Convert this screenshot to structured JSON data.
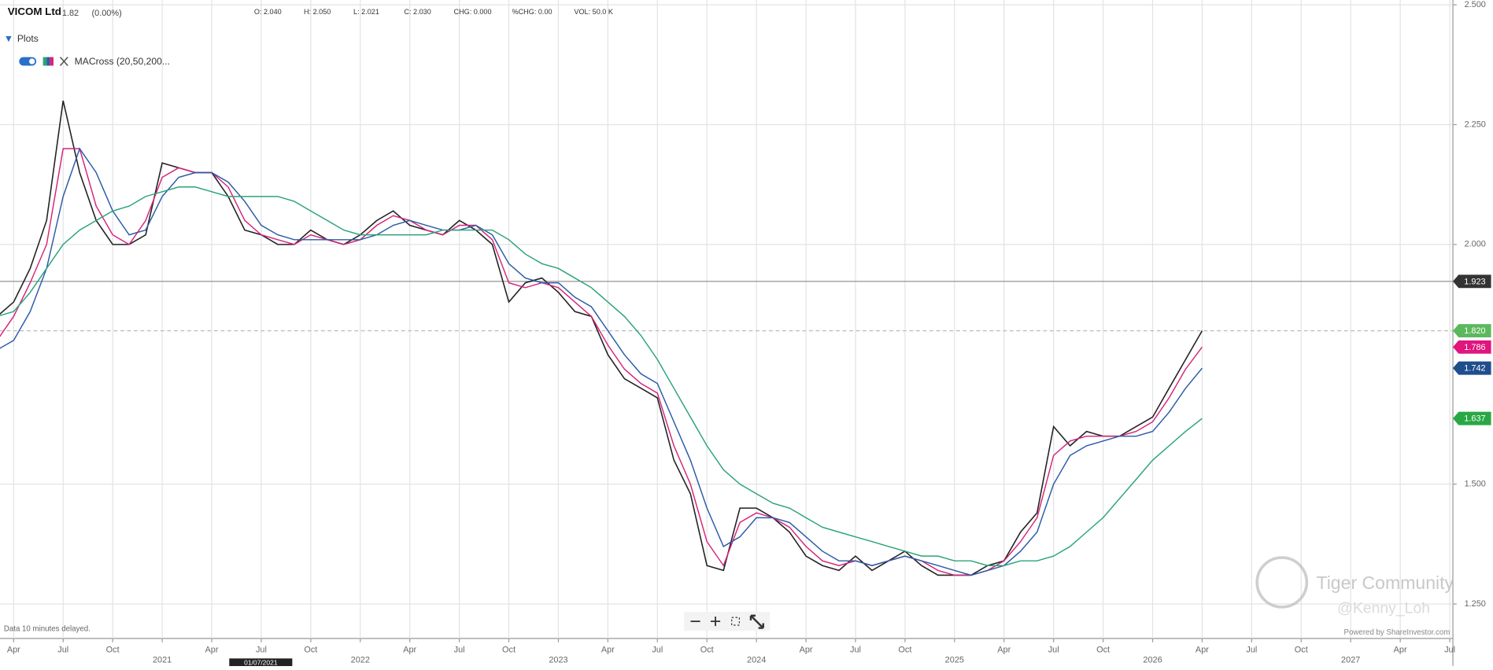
{
  "header": {
    "name": "VICOM Ltd",
    "last": "1.82",
    "change": "(0.00%)",
    "stats": [
      "O: 2.040",
      "H: 2.050",
      "L: 2.021",
      "C: 2.030",
      "CHG: 0.000",
      "%CHG: 0.00",
      "VOL: 50.0 K"
    ]
  },
  "plots_panel": {
    "title": "Plots",
    "indicator": "MACross (20,50,200..."
  },
  "footer": {
    "delay_note": "Data 10 minutes delayed.",
    "powered_by": "Powered by ShareInvestor.com",
    "date_tag": "01/07/2021"
  },
  "watermark": {
    "brand": "Tiger Community",
    "user": "@Kenny_Loh"
  },
  "chart_data": {
    "type": "line",
    "x": [
      "2020-03",
      "2020-04",
      "2020-05",
      "2020-06",
      "2020-07",
      "2020-08",
      "2020-09",
      "2020-10",
      "2020-11",
      "2020-12",
      "2021-01",
      "2021-02",
      "2021-03",
      "2021-04",
      "2021-05",
      "2021-06",
      "2021-07",
      "2021-08",
      "2021-09",
      "2021-10",
      "2021-11",
      "2021-12",
      "2022-01",
      "2022-02",
      "2022-03",
      "2022-04",
      "2022-05",
      "2022-06",
      "2022-07",
      "2022-08",
      "2022-09",
      "2022-10",
      "2022-11",
      "2022-12",
      "2023-01",
      "2023-02",
      "2023-03",
      "2023-04",
      "2023-05",
      "2023-06",
      "2023-07",
      "2023-08",
      "2023-09",
      "2023-10",
      "2023-11",
      "2023-12",
      "2024-01",
      "2024-02",
      "2024-03",
      "2024-04",
      "2024-05",
      "2024-06",
      "2024-07",
      "2024-08",
      "2024-09",
      "2024-10",
      "2024-11",
      "2024-12",
      "2025-01",
      "2025-02",
      "2025-03",
      "2025-04",
      "2025-05",
      "2025-06",
      "2025-07",
      "2025-08",
      "2025-09",
      "2025-10",
      "2025-11",
      "2025-12",
      "2026-01",
      "2026-02",
      "2026-03",
      "2026-04"
    ],
    "series": [
      {
        "color": "#222222",
        "values": [
          1.85,
          1.88,
          1.95,
          2.05,
          2.3,
          2.15,
          2.05,
          2.0,
          2.0,
          2.02,
          2.17,
          2.16,
          2.15,
          2.15,
          2.1,
          2.03,
          2.02,
          2.0,
          2.0,
          2.03,
          2.01,
          2.0,
          2.02,
          2.05,
          2.07,
          2.04,
          2.03,
          2.02,
          2.05,
          2.03,
          2.0,
          1.88,
          1.92,
          1.93,
          1.9,
          1.86,
          1.85,
          1.77,
          1.72,
          1.7,
          1.68,
          1.55,
          1.48,
          1.33,
          1.32,
          1.45,
          1.45,
          1.43,
          1.4,
          1.35,
          1.33,
          1.32,
          1.35,
          1.32,
          1.34,
          1.36,
          1.33,
          1.31,
          1.31,
          1.31,
          1.33,
          1.34,
          1.4,
          1.44,
          1.62,
          1.58,
          1.61,
          1.6,
          1.6,
          1.62,
          1.64,
          1.7,
          1.76,
          1.82
        ]
      },
      {
        "color": "#d6247a",
        "values": [
          1.8,
          1.85,
          1.92,
          2.0,
          2.2,
          2.2,
          2.08,
          2.02,
          2.0,
          2.05,
          2.14,
          2.16,
          2.15,
          2.15,
          2.12,
          2.05,
          2.02,
          2.01,
          2.0,
          2.02,
          2.01,
          2.0,
          2.01,
          2.04,
          2.06,
          2.05,
          2.03,
          2.02,
          2.04,
          2.04,
          2.01,
          1.92,
          1.91,
          1.92,
          1.91,
          1.88,
          1.85,
          1.79,
          1.74,
          1.71,
          1.69,
          1.58,
          1.5,
          1.38,
          1.33,
          1.42,
          1.44,
          1.43,
          1.41,
          1.37,
          1.34,
          1.33,
          1.34,
          1.33,
          1.34,
          1.35,
          1.34,
          1.32,
          1.31,
          1.31,
          1.32,
          1.34,
          1.38,
          1.43,
          1.56,
          1.59,
          1.6,
          1.6,
          1.6,
          1.61,
          1.63,
          1.68,
          1.74,
          1.786
        ]
      },
      {
        "color": "#2a5ba8",
        "values": [
          1.78,
          1.8,
          1.86,
          1.95,
          2.1,
          2.2,
          2.15,
          2.07,
          2.02,
          2.03,
          2.1,
          2.14,
          2.15,
          2.15,
          2.13,
          2.09,
          2.04,
          2.02,
          2.01,
          2.01,
          2.01,
          2.01,
          2.01,
          2.02,
          2.04,
          2.05,
          2.04,
          2.03,
          2.03,
          2.04,
          2.02,
          1.96,
          1.93,
          1.92,
          1.92,
          1.89,
          1.87,
          1.82,
          1.77,
          1.73,
          1.71,
          1.63,
          1.55,
          1.45,
          1.37,
          1.39,
          1.43,
          1.43,
          1.42,
          1.39,
          1.36,
          1.34,
          1.34,
          1.33,
          1.34,
          1.35,
          1.34,
          1.33,
          1.32,
          1.31,
          1.32,
          1.33,
          1.36,
          1.4,
          1.5,
          1.56,
          1.58,
          1.59,
          1.6,
          1.6,
          1.61,
          1.65,
          1.7,
          1.742
        ]
      },
      {
        "color": "#2aa37a",
        "values": [
          1.85,
          1.86,
          1.9,
          1.95,
          2.0,
          2.03,
          2.05,
          2.07,
          2.08,
          2.1,
          2.11,
          2.12,
          2.12,
          2.11,
          2.1,
          2.1,
          2.1,
          2.1,
          2.09,
          2.07,
          2.05,
          2.03,
          2.02,
          2.02,
          2.02,
          2.02,
          2.02,
          2.03,
          2.03,
          2.03,
          2.03,
          2.01,
          1.98,
          1.96,
          1.95,
          1.93,
          1.91,
          1.88,
          1.85,
          1.81,
          1.76,
          1.7,
          1.64,
          1.58,
          1.53,
          1.5,
          1.48,
          1.46,
          1.45,
          1.43,
          1.41,
          1.4,
          1.39,
          1.38,
          1.37,
          1.36,
          1.35,
          1.35,
          1.34,
          1.34,
          1.33,
          1.33,
          1.34,
          1.34,
          1.35,
          1.37,
          1.4,
          1.43,
          1.47,
          1.51,
          1.55,
          1.58,
          1.61,
          1.637
        ]
      }
    ],
    "xlim": [
      "2020-03",
      "2027-08"
    ],
    "ylim": [
      1.18,
      2.51
    ],
    "yticks": [
      {
        "value": 2.5,
        "label": "2.500"
      },
      {
        "value": 2.25,
        "label": "2.250"
      },
      {
        "value": 2.0,
        "label": "2.000"
      },
      {
        "value": 1.5,
        "label": "1.500"
      },
      {
        "value": 1.25,
        "label": "1.250"
      }
    ],
    "xticks": [
      {
        "value": "2020-04",
        "label": "Apr"
      },
      {
        "value": "2020-07",
        "label": "Jul"
      },
      {
        "value": "2020-10",
        "label": "Oct"
      },
      {
        "value": "2021-01",
        "label": "2021"
      },
      {
        "value": "2021-04",
        "label": "Apr"
      },
      {
        "value": "2021-07",
        "label": "Jul"
      },
      {
        "value": "2021-10",
        "label": "Oct"
      },
      {
        "value": "2022-01",
        "label": "2022"
      },
      {
        "value": "2022-04",
        "label": "Apr"
      },
      {
        "value": "2022-07",
        "label": "Jul"
      },
      {
        "value": "2022-10",
        "label": "Oct"
      },
      {
        "value": "2023-01",
        "label": "2023"
      },
      {
        "value": "2023-04",
        "label": "Apr"
      },
      {
        "value": "2023-07",
        "label": "Jul"
      },
      {
        "value": "2023-10",
        "label": "Oct"
      },
      {
        "value": "2024-01",
        "label": "2024"
      },
      {
        "value": "2024-04",
        "label": "Apr"
      },
      {
        "value": "2024-07",
        "label": "Jul"
      },
      {
        "value": "2024-10",
        "label": "Oct"
      },
      {
        "value": "2025-01",
        "label": "2025"
      },
      {
        "value": "2025-04",
        "label": "Apr"
      },
      {
        "value": "2025-07",
        "label": "Jul"
      },
      {
        "value": "2025-10",
        "label": "Oct"
      },
      {
        "value": "2026-01",
        "label": "2026"
      },
      {
        "value": "2026-04",
        "label": "Apr"
      },
      {
        "value": "2026-07",
        "label": "Jul"
      },
      {
        "value": "2026-10",
        "label": "Oct"
      },
      {
        "value": "2027-01",
        "label": "2027"
      },
      {
        "value": "2027-04",
        "label": "Apr"
      },
      {
        "value": "2027-07",
        "label": "Jul"
      }
    ],
    "grid": true,
    "price_tags": [
      {
        "value": 1.923,
        "label": "1.923",
        "color": "#333333",
        "line": "solid"
      },
      {
        "value": 1.82,
        "label": "1.820",
        "color": "#5cb85c",
        "line": "dashed"
      },
      {
        "value": 1.786,
        "label": "1.786",
        "color": "#e0157e"
      },
      {
        "value": 1.742,
        "label": "1.742",
        "color": "#1f4e8c"
      },
      {
        "value": 1.637,
        "label": "1.637",
        "color": "#28a745"
      }
    ]
  }
}
